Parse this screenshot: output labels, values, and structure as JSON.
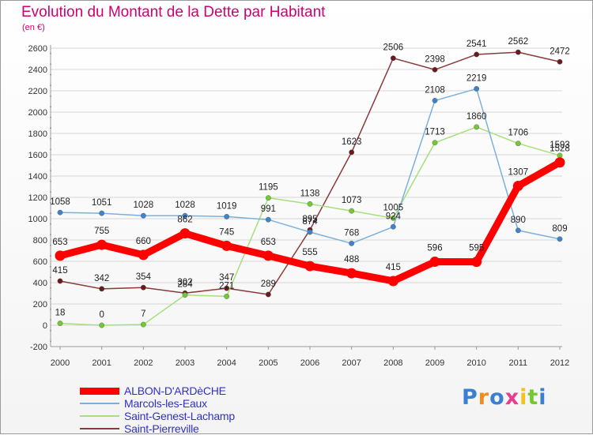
{
  "chart_data": {
    "type": "line",
    "title": "Evolution du Montant de la Dette par Habitant",
    "unit_label": "(en €)",
    "x": [
      "2000",
      "2001",
      "2002",
      "2003",
      "2004",
      "2005",
      "2006",
      "2007",
      "2008",
      "2009",
      "2010",
      "2011",
      "2012"
    ],
    "ylim": [
      -200,
      2600
    ],
    "y_ticks": [
      "-200",
      "0",
      "200",
      "400",
      "600",
      "800",
      "1000",
      "1200",
      "1400",
      "1600",
      "1800",
      "2000",
      "2200",
      "2400",
      "2600"
    ],
    "grid": true,
    "legend_position": "bottom-left",
    "series": [
      {
        "name": "ALBON-D'ARDèCHE",
        "color": "#ff0000",
        "point_color": "#ff0000",
        "width": 9,
        "values": [
          653,
          755,
          660,
          862,
          745,
          653,
          555,
          488,
          415,
          596,
          595,
          1307,
          1528
        ],
        "labels": [
          "653",
          "755",
          "660",
          "862",
          "745",
          "653",
          "555",
          "488",
          "415",
          "596",
          "595",
          "1307",
          "1528"
        ]
      },
      {
        "name": "Marcols-les-Eaux",
        "color": "#7ab0de",
        "point_color": "#3f83c9",
        "width": 1.5,
        "values": [
          1058,
          1051,
          1028,
          1028,
          1019,
          991,
          874,
          768,
          924,
          2108,
          2219,
          890,
          809
        ],
        "labels": [
          "1058",
          "1051",
          "1028",
          "1028",
          "1019",
          "991",
          "874",
          "768",
          "924",
          "2108",
          "2219",
          "890",
          "809"
        ]
      },
      {
        "name": "Saint-Genest-Lachamp",
        "color": "#a6e07a",
        "point_color": "#74c831",
        "width": 1.5,
        "values": [
          18,
          0,
          7,
          284,
          271,
          1195,
          1138,
          1073,
          1005,
          1713,
          1860,
          1706,
          1593
        ],
        "labels": [
          "18",
          "0",
          "7",
          "284",
          "271",
          "1195",
          "1138",
          "1073",
          "1005",
          "1713",
          "1860",
          "1706",
          "1593"
        ]
      },
      {
        "name": "Saint-Pierreville",
        "color": "#8a3a3a",
        "point_color": "#6a1a1a",
        "width": 1.5,
        "values": [
          415,
          342,
          354,
          302,
          347,
          289,
          895,
          1623,
          2506,
          2398,
          2541,
          2562,
          2472
        ],
        "labels": [
          "415",
          "342",
          "354",
          "302",
          "347",
          "289",
          "895",
          "1623",
          "2506",
          "2398",
          "2541",
          "2562",
          "2472"
        ]
      }
    ]
  },
  "logo": {
    "letters": [
      "P",
      "r",
      "o",
      "x",
      "i",
      "t",
      "i"
    ],
    "colors": [
      "#3a7fd0",
      "#f28c1e",
      "#3a7fd0",
      "#e83c8c",
      "#f2c21e",
      "#74c831",
      "#3a7fd0"
    ]
  }
}
